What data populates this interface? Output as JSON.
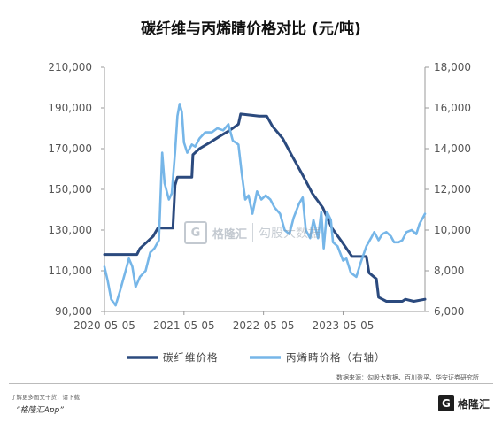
{
  "title": "碳纤维与丙烯睛价格对比 (元/吨)",
  "chart_data": {
    "type": "line",
    "title": "碳纤维与丙烯睛价格对比 (元/吨)",
    "x_ticks": [
      "2020-05-05",
      "2021-05-05",
      "2022-05-05",
      "2023-05-05"
    ],
    "y_left_ticks": [
      "90,000",
      "110,000",
      "130,000",
      "150,000",
      "170,000",
      "190,000",
      "210,000"
    ],
    "y_right_ticks": [
      "6,000",
      "8,000",
      "10,000",
      "12,000",
      "14,000",
      "16,000",
      "18,000"
    ],
    "ylim_left": [
      90000,
      210000
    ],
    "ylim_right": [
      6000,
      18000
    ],
    "xlim": [
      "2020-05-05",
      "2024-05-15"
    ],
    "grid": false,
    "legend_position": "bottom",
    "series": [
      {
        "name": "碳纤维价格",
        "axis": "left",
        "color": "#2b4a7e",
        "points": [
          [
            "2020-05-05",
            118000
          ],
          [
            "2020-10-01",
            118000
          ],
          [
            "2020-10-15",
            121000
          ],
          [
            "2020-11-15",
            124000
          ],
          [
            "2020-12-15",
            127000
          ],
          [
            "2021-01-05",
            131000
          ],
          [
            "2021-03-15",
            131000
          ],
          [
            "2021-03-25",
            152000
          ],
          [
            "2021-04-05",
            156000
          ],
          [
            "2021-06-10",
            156000
          ],
          [
            "2021-06-15",
            167000
          ],
          [
            "2021-07-15",
            170000
          ],
          [
            "2021-09-01",
            173000
          ],
          [
            "2021-10-15",
            176000
          ],
          [
            "2021-12-01",
            179000
          ],
          [
            "2022-01-10",
            182000
          ],
          [
            "2022-01-20",
            187000
          ],
          [
            "2022-04-15",
            186000
          ],
          [
            "2022-05-20",
            186000
          ],
          [
            "2022-06-15",
            181000
          ],
          [
            "2022-08-01",
            175000
          ],
          [
            "2022-09-15",
            166000
          ],
          [
            "2022-11-01",
            157000
          ],
          [
            "2022-12-15",
            148000
          ],
          [
            "2023-02-01",
            141000
          ],
          [
            "2023-03-15",
            131000
          ],
          [
            "2023-05-01",
            124000
          ],
          [
            "2023-06-15",
            117000
          ],
          [
            "2023-08-20",
            117000
          ],
          [
            "2023-09-01",
            109000
          ],
          [
            "2023-10-05",
            106000
          ],
          [
            "2023-10-15",
            97000
          ],
          [
            "2023-11-20",
            95000
          ],
          [
            "2024-02-01",
            95000
          ],
          [
            "2024-02-15",
            96000
          ],
          [
            "2024-03-25",
            95000
          ],
          [
            "2024-05-15",
            96000
          ]
        ]
      },
      {
        "name": "丙烯睛价格（右轴）",
        "axis": "right",
        "color": "#76b6e8",
        "points": [
          [
            "2020-05-05",
            8200
          ],
          [
            "2020-05-20",
            7500
          ],
          [
            "2020-06-05",
            6600
          ],
          [
            "2020-06-25",
            6300
          ],
          [
            "2020-07-15",
            7000
          ],
          [
            "2020-08-10",
            8000
          ],
          [
            "2020-08-25",
            8600
          ],
          [
            "2020-09-10",
            8200
          ],
          [
            "2020-09-25",
            7200
          ],
          [
            "2020-10-15",
            7700
          ],
          [
            "2020-11-10",
            8000
          ],
          [
            "2020-12-01",
            8900
          ],
          [
            "2020-12-20",
            9100
          ],
          [
            "2021-01-10",
            9500
          ],
          [
            "2021-01-25",
            13800
          ],
          [
            "2021-02-05",
            12300
          ],
          [
            "2021-02-25",
            11500
          ],
          [
            "2021-03-10",
            11800
          ],
          [
            "2021-03-25",
            13800
          ],
          [
            "2021-04-05",
            15600
          ],
          [
            "2021-04-15",
            16200
          ],
          [
            "2021-04-25",
            15800
          ],
          [
            "2021-05-05",
            14300
          ],
          [
            "2021-05-20",
            13800
          ],
          [
            "2021-06-10",
            14200
          ],
          [
            "2021-06-25",
            14100
          ],
          [
            "2021-07-15",
            14500
          ],
          [
            "2021-08-10",
            14800
          ],
          [
            "2021-09-10",
            14800
          ],
          [
            "2021-10-05",
            15000
          ],
          [
            "2021-11-01",
            14900
          ],
          [
            "2021-11-25",
            15200
          ],
          [
            "2021-12-15",
            14400
          ],
          [
            "2022-01-10",
            14200
          ],
          [
            "2022-01-25",
            12800
          ],
          [
            "2022-02-10",
            11500
          ],
          [
            "2022-02-25",
            11700
          ],
          [
            "2022-03-15",
            10800
          ],
          [
            "2022-04-05",
            11900
          ],
          [
            "2022-04-25",
            11500
          ],
          [
            "2022-05-15",
            11700
          ],
          [
            "2022-06-05",
            11500
          ],
          [
            "2022-06-25",
            11100
          ],
          [
            "2022-07-20",
            10800
          ],
          [
            "2022-08-10",
            10000
          ],
          [
            "2022-09-01",
            9800
          ],
          [
            "2022-09-20",
            10600
          ],
          [
            "2022-10-15",
            11300
          ],
          [
            "2022-11-01",
            11600
          ],
          [
            "2022-11-15",
            10000
          ],
          [
            "2022-12-05",
            9600
          ],
          [
            "2022-12-20",
            10500
          ],
          [
            "2023-01-10",
            9600
          ],
          [
            "2023-01-25",
            10900
          ],
          [
            "2023-02-05",
            9100
          ],
          [
            "2023-02-20",
            10900
          ],
          [
            "2023-03-10",
            10500
          ],
          [
            "2023-03-20",
            9400
          ],
          [
            "2023-04-10",
            9200
          ],
          [
            "2023-05-05",
            8500
          ],
          [
            "2023-05-20",
            8600
          ],
          [
            "2023-06-10",
            7900
          ],
          [
            "2023-07-05",
            7700
          ],
          [
            "2023-07-25",
            8400
          ],
          [
            "2023-08-20",
            9200
          ],
          [
            "2023-09-10",
            9600
          ],
          [
            "2023-09-25",
            9900
          ],
          [
            "2023-10-15",
            9500
          ],
          [
            "2023-11-01",
            9800
          ],
          [
            "2023-11-20",
            9900
          ],
          [
            "2023-12-10",
            9700
          ],
          [
            "2023-12-25",
            9400
          ],
          [
            "2024-01-15",
            9400
          ],
          [
            "2024-02-01",
            9500
          ],
          [
            "2024-02-20",
            9900
          ],
          [
            "2024-03-15",
            10000
          ],
          [
            "2024-04-05",
            9800
          ],
          [
            "2024-04-20",
            10300
          ],
          [
            "2024-05-15",
            10800
          ]
        ]
      }
    ],
    "bar_gaps": {
      "note": "",
      "color": "#76b6e8"
    }
  },
  "source": "数据来源：勾股大数据、百川盈孚、华安证券研究所",
  "footer": {
    "note": "了解更多图文干货，请下载",
    "app": "“格隆汇App”"
  },
  "brand": {
    "mark": "G",
    "text": "格隆汇"
  },
  "watermark": {
    "mark": "G",
    "text1": "格隆汇",
    "text2": "勾股大数据"
  }
}
